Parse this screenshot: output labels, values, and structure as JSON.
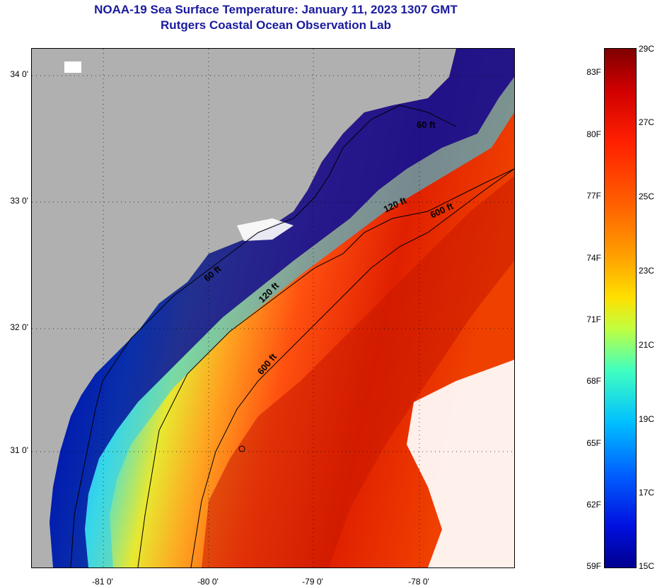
{
  "title_line1": "NOAA-19 Sea Surface Temperature:  January 11, 2023 1307 GMT",
  "title_line2": "Rutgers Coastal Ocean Observation Lab",
  "map": {
    "latitude_labels": [
      "34 0'",
      "33 0'",
      "32 0'",
      "31 0'"
    ],
    "longitude_labels": [
      "-81 0'",
      "-80 0'",
      "-79 0'",
      "-78 0'"
    ],
    "contour_labels": [
      "60 ft",
      "120 ft",
      "600 ft",
      "60 ft",
      "120 ft",
      "600 ft"
    ],
    "colors": {
      "land": "#b0b0b0",
      "cloud": "#ffffff",
      "cold": "#00008f",
      "warm": "#e02000"
    }
  },
  "colorbar": {
    "fahrenheit_labels": [
      "83F",
      "80F",
      "77F",
      "74F",
      "71F",
      "68F",
      "65F",
      "62F",
      "59F"
    ],
    "celsius_labels": [
      "29C",
      "27C",
      "25C",
      "23C",
      "21C",
      "19C",
      "17C",
      "15C"
    ],
    "colormap": "jet",
    "min_celsius": 15,
    "max_celsius": 29
  }
}
